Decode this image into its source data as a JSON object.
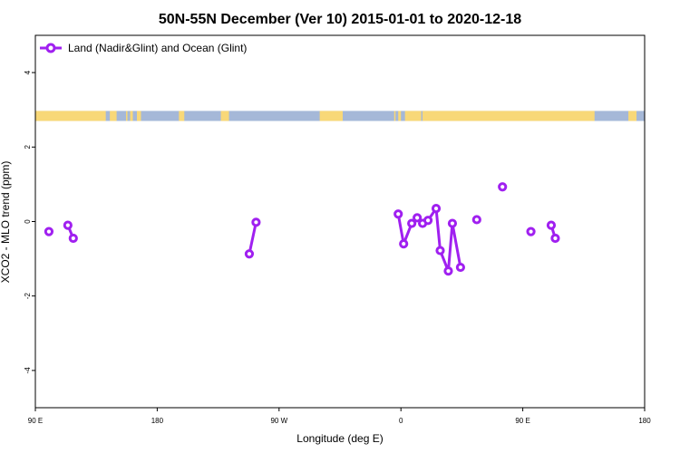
{
  "chart_data": {
    "type": "line",
    "title": "50N-55N December (Ver 10)   2015-01-01 to 2020-12-18",
    "xlabel": "Longitude (deg E)",
    "ylabel": "XCO2 - MLO trend (ppm)",
    "xlim": [
      90,
      540
    ],
    "ylim": [
      -5,
      5
    ],
    "x_ticks": [
      {
        "value": 90,
        "label": "90 E"
      },
      {
        "value": 180,
        "label": "180"
      },
      {
        "value": 270,
        "label": "90 W"
      },
      {
        "value": 360,
        "label": "0"
      },
      {
        "value": 450,
        "label": "90 E"
      },
      {
        "value": 540,
        "label": "180"
      }
    ],
    "y_ticks": [
      {
        "value": -4,
        "label": "-4"
      },
      {
        "value": -2,
        "label": "-2"
      },
      {
        "value": 0,
        "label": "0"
      },
      {
        "value": 2,
        "label": "2"
      },
      {
        "value": 4,
        "label": "4"
      }
    ],
    "legend": {
      "position": "top-left"
    },
    "series": [
      {
        "name": "Land (Nadir&Glint) and Ocean (Glint)",
        "color": "#a020f0",
        "segments": [
          [
            {
              "x": 100,
              "y": -0.27
            }
          ],
          [
            {
              "x": 114,
              "y": -0.1
            },
            {
              "x": 118,
              "y": -0.45
            }
          ],
          [
            {
              "x": 248,
              "y": -0.87
            },
            {
              "x": 253,
              "y": -0.02
            }
          ],
          [
            {
              "x": 358,
              "y": 0.2
            },
            {
              "x": 362,
              "y": -0.6
            },
            {
              "x": 368,
              "y": -0.05
            },
            {
              "x": 372,
              "y": 0.1
            },
            {
              "x": 376,
              "y": -0.05
            },
            {
              "x": 380,
              "y": 0.03
            },
            {
              "x": 386,
              "y": 0.35
            },
            {
              "x": 389,
              "y": -0.78
            },
            {
              "x": 395,
              "y": -1.33
            },
            {
              "x": 398,
              "y": -0.05
            },
            {
              "x": 404,
              "y": -1.23
            }
          ],
          [
            {
              "x": 416,
              "y": 0.05
            }
          ],
          [
            {
              "x": 435,
              "y": 0.93
            }
          ],
          [
            {
              "x": 456,
              "y": -0.27
            }
          ],
          [
            {
              "x": 471,
              "y": -0.1
            },
            {
              "x": 474,
              "y": -0.45
            }
          ]
        ]
      }
    ],
    "land_ocean_strip": {
      "y_range": [
        2.7,
        2.97
      ],
      "ocean_color": "#a5b8d8",
      "land_color": "#f8d878",
      "land_spans": [
        [
          90,
          142
        ],
        [
          145,
          150
        ],
        [
          157,
          158
        ],
        [
          160,
          162
        ],
        [
          165,
          168
        ],
        [
          196,
          200
        ],
        [
          227,
          233
        ],
        [
          300,
          317
        ],
        [
          355,
          356
        ],
        [
          358,
          360
        ],
        [
          363,
          375
        ],
        [
          376,
          377
        ],
        [
          376,
          503
        ],
        [
          528,
          534
        ]
      ]
    }
  }
}
